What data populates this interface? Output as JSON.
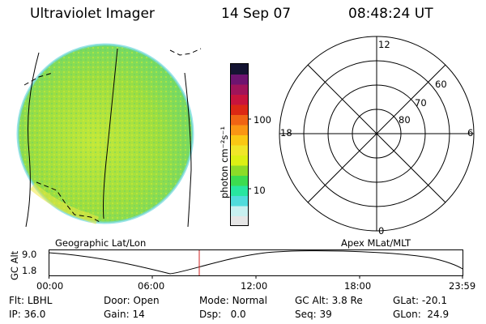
{
  "header": {
    "instrument": "Ultraviolet Imager",
    "date": "14 Sep 07",
    "time": "08:48:24 UT"
  },
  "colorbar": {
    "unit_label": "photon cm⁻²s⁻¹",
    "ticks": [
      "100",
      "10"
    ],
    "colors": [
      "#e6e6e6",
      "#c8f0f0",
      "#50dcdc",
      "#28e6a0",
      "#3cdc50",
      "#8cdc28",
      "#dcf014",
      "#f0e628",
      "#fac814",
      "#fa9614",
      "#f06414",
      "#dc2814",
      "#c8143c",
      "#a0145a",
      "#6e1470",
      "#141432"
    ]
  },
  "polar": {
    "clock_labels": [
      "12",
      "18",
      "6",
      "0"
    ],
    "lat_labels": [
      "60",
      "70",
      "80"
    ]
  },
  "panel_labels": {
    "left": "Geographic Lat/Lon",
    "right": "Apex MLat/MLT"
  },
  "altitude_plot": {
    "ylabel": "GC Alt",
    "yticks": [
      "9.0",
      "1.8"
    ],
    "xticks": [
      "00:00",
      "06:00",
      "12:00",
      "18:00",
      "23:59"
    ],
    "marker_color": "#d02020"
  },
  "info": {
    "row1": [
      {
        "label": "Flt:",
        "value": "LBHL"
      },
      {
        "label": "Door:",
        "value": "Open"
      },
      {
        "label": "Mode:",
        "value": "Normal"
      },
      {
        "label": "GC Alt:",
        "value": "3.8 Re"
      },
      {
        "label": "GLat:",
        "value": "-20.1"
      }
    ],
    "row2": [
      {
        "label": "IP:",
        "value": "36.0"
      },
      {
        "label": "Gain:",
        "value": "14"
      },
      {
        "label": "Dsp:",
        "value": "0.0"
      },
      {
        "label": "Seq:",
        "value": "39"
      },
      {
        "label": "GLon:",
        "value": "24.9"
      }
    ]
  }
}
